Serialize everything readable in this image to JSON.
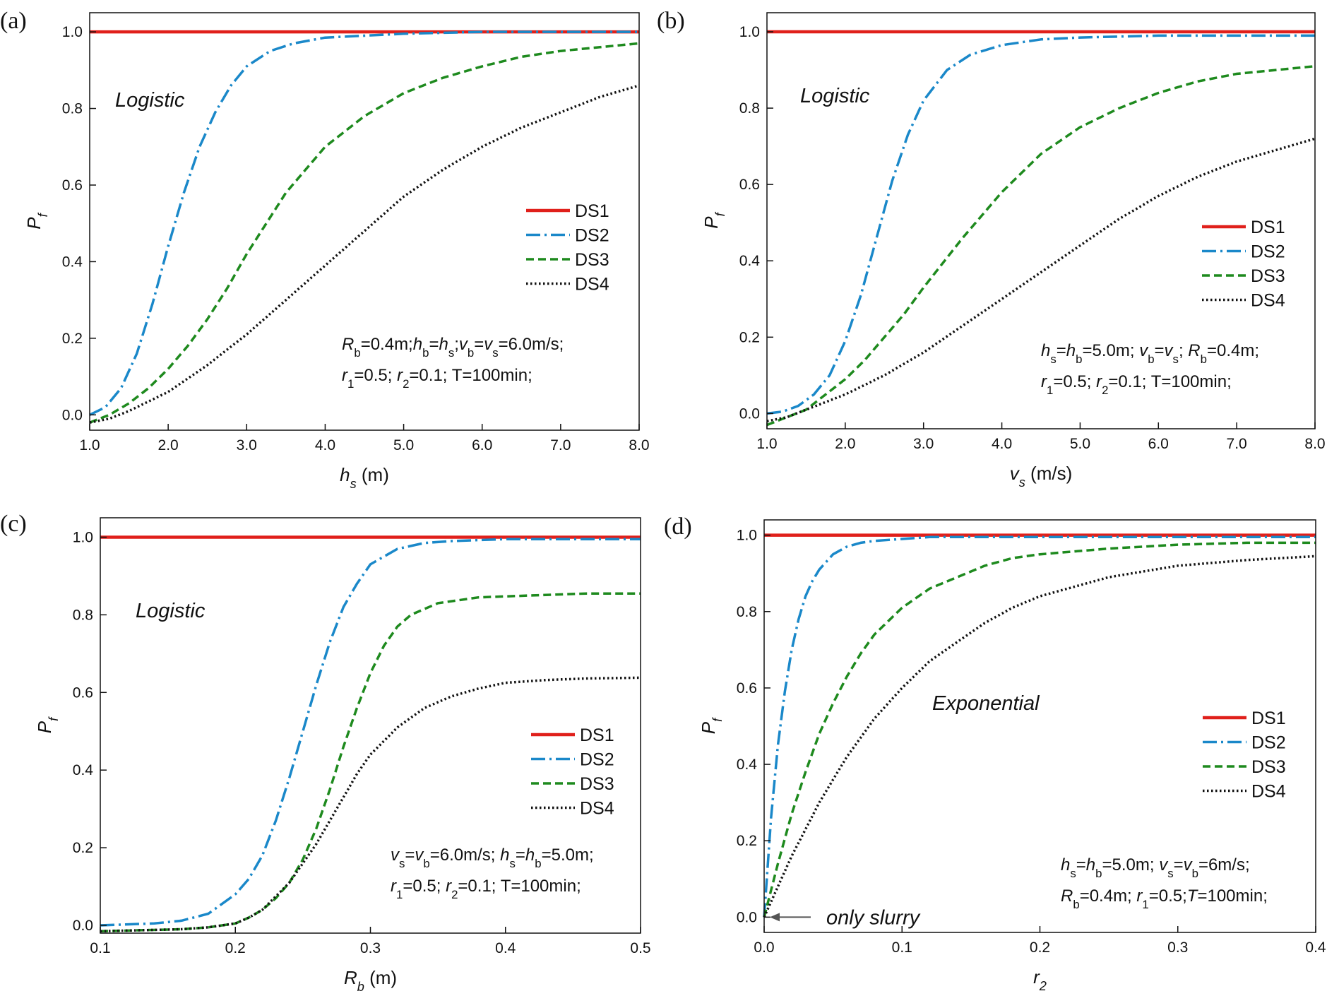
{
  "chart_data": [
    {
      "type": "line",
      "panel_label": "(a)",
      "annotation": "Logistic",
      "ylabel": {
        "main": "P",
        "sub": "f",
        "unit": ""
      },
      "xlabel": {
        "main": "h",
        "sub": "s",
        "unit": " (m)"
      },
      "xlim": [
        1.0,
        8.0
      ],
      "ylim": [
        -0.04,
        1.05
      ],
      "xticks": [
        "1.0",
        "2.0",
        "3.0",
        "4.0",
        "5.0",
        "6.0",
        "7.0",
        "8.0"
      ],
      "yticks": [
        "0.0",
        "0.2",
        "0.4",
        "0.6",
        "0.8",
        "1.0"
      ],
      "legend": [
        "DS1",
        "DS2",
        "DS3",
        "DS4"
      ],
      "params": [
        [
          {
            "t": "R",
            "i": true
          },
          {
            "t": "b",
            "sub": true
          },
          {
            "t": "=0.4m;"
          },
          {
            "t": "h",
            "i": true
          },
          {
            "t": "b",
            "sub": true
          },
          {
            "t": "="
          },
          {
            "t": "h",
            "i": true
          },
          {
            "t": "s",
            "sub": true
          },
          {
            "t": ";"
          },
          {
            "t": "v",
            "i": true
          },
          {
            "t": "b",
            "sub": true
          },
          {
            "t": "="
          },
          {
            "t": "v",
            "i": true
          },
          {
            "t": "s",
            "sub": true
          },
          {
            "t": "=6.0m/s;"
          }
        ],
        [
          {
            "t": "r",
            "i": true
          },
          {
            "t": "1",
            "sub": true
          },
          {
            "t": "=0.5; "
          },
          {
            "t": "r",
            "i": true
          },
          {
            "t": "2",
            "sub": true
          },
          {
            "t": "=0.1; T=100min;"
          }
        ]
      ],
      "series": [
        {
          "name": "DS1",
          "x": [
            1.0,
            8.0
          ],
          "y": [
            1.0,
            1.0
          ]
        },
        {
          "name": "DS2",
          "x": [
            1.0,
            1.2,
            1.4,
            1.6,
            1.8,
            2.0,
            2.2,
            2.4,
            2.6,
            2.8,
            3.0,
            3.3,
            3.6,
            4.0,
            4.5,
            5.0,
            6.0,
            7.0,
            8.0
          ],
          "y": [
            0.0,
            0.02,
            0.07,
            0.16,
            0.29,
            0.44,
            0.58,
            0.7,
            0.79,
            0.86,
            0.91,
            0.95,
            0.97,
            0.985,
            0.99,
            0.995,
            1.0,
            1.0,
            1.0
          ]
        },
        {
          "name": "DS3",
          "x": [
            1.0,
            1.25,
            1.5,
            1.75,
            2.0,
            2.25,
            2.5,
            2.75,
            3.0,
            3.25,
            3.5,
            3.75,
            4.0,
            4.5,
            5.0,
            5.5,
            6.0,
            6.5,
            7.0,
            7.5,
            8.0
          ],
          "y": [
            -0.02,
            0.0,
            0.03,
            0.07,
            0.12,
            0.18,
            0.25,
            0.33,
            0.42,
            0.5,
            0.58,
            0.64,
            0.7,
            0.78,
            0.84,
            0.88,
            0.91,
            0.935,
            0.95,
            0.96,
            0.97
          ]
        },
        {
          "name": "DS4",
          "x": [
            1.0,
            1.25,
            1.5,
            1.75,
            2.0,
            2.5,
            3.0,
            3.5,
            4.0,
            4.5,
            5.0,
            5.5,
            6.0,
            6.5,
            7.0,
            7.5,
            8.0
          ],
          "y": [
            -0.02,
            -0.01,
            0.01,
            0.035,
            0.06,
            0.13,
            0.21,
            0.3,
            0.39,
            0.48,
            0.57,
            0.64,
            0.7,
            0.75,
            0.79,
            0.83,
            0.86
          ]
        }
      ]
    },
    {
      "type": "line",
      "panel_label": "(b)",
      "annotation": "Logistic",
      "ylabel": {
        "main": "P",
        "sub": "f",
        "unit": ""
      },
      "xlabel": {
        "main": "v",
        "sub": "s",
        "unit": " (m/s)"
      },
      "xlim": [
        1.0,
        8.0
      ],
      "ylim": [
        -0.04,
        1.05
      ],
      "xticks": [
        "1.0",
        "2.0",
        "3.0",
        "4.0",
        "5.0",
        "6.0",
        "7.0",
        "8.0"
      ],
      "yticks": [
        "0.0",
        "0.2",
        "0.4",
        "0.6",
        "0.8",
        "1.0"
      ],
      "legend": [
        "DS1",
        "DS2",
        "DS3",
        "DS4"
      ],
      "params": [
        [
          {
            "t": "h",
            "i": true
          },
          {
            "t": "s",
            "sub": true
          },
          {
            "t": "="
          },
          {
            "t": "h",
            "i": true
          },
          {
            "t": "b",
            "sub": true
          },
          {
            "t": "=5.0m; "
          },
          {
            "t": "v",
            "i": true
          },
          {
            "t": "b",
            "sub": true
          },
          {
            "t": "="
          },
          {
            "t": "v",
            "i": true
          },
          {
            "t": "s",
            "sub": true
          },
          {
            "t": "; "
          },
          {
            "t": "R",
            "i": true
          },
          {
            "t": "b",
            "sub": true
          },
          {
            "t": "=0.4m;"
          }
        ],
        [
          {
            "t": "r",
            "i": true
          },
          {
            "t": "1",
            "sub": true
          },
          {
            "t": "=0.5; "
          },
          {
            "t": "r",
            "i": true
          },
          {
            "t": "2",
            "sub": true
          },
          {
            "t": "=0.1; T=100min;"
          }
        ]
      ],
      "series": [
        {
          "name": "DS1",
          "x": [
            1.0,
            8.0
          ],
          "y": [
            1.0,
            1.0
          ]
        },
        {
          "name": "DS2",
          "x": [
            1.0,
            1.2,
            1.4,
            1.6,
            1.8,
            2.0,
            2.2,
            2.4,
            2.6,
            2.8,
            3.0,
            3.3,
            3.6,
            4.0,
            4.5,
            5.0,
            6.0,
            7.0,
            8.0
          ],
          "y": [
            0.0,
            0.005,
            0.02,
            0.05,
            0.1,
            0.19,
            0.31,
            0.46,
            0.61,
            0.73,
            0.82,
            0.9,
            0.94,
            0.965,
            0.98,
            0.985,
            0.99,
            0.99,
            0.99
          ]
        },
        {
          "name": "DS3",
          "x": [
            1.0,
            1.25,
            1.5,
            1.75,
            2.0,
            2.25,
            2.5,
            2.75,
            3.0,
            3.5,
            4.0,
            4.5,
            5.0,
            5.5,
            6.0,
            6.5,
            7.0,
            7.5,
            8.0
          ],
          "y": [
            -0.03,
            -0.01,
            0.01,
            0.05,
            0.09,
            0.14,
            0.2,
            0.26,
            0.33,
            0.46,
            0.58,
            0.68,
            0.75,
            0.8,
            0.84,
            0.87,
            0.89,
            0.9,
            0.91
          ]
        },
        {
          "name": "DS4",
          "x": [
            1.0,
            1.25,
            1.5,
            1.75,
            2.0,
            2.5,
            3.0,
            3.5,
            4.0,
            4.5,
            5.0,
            5.5,
            6.0,
            6.5,
            7.0,
            7.5,
            8.0
          ],
          "y": [
            -0.02,
            -0.01,
            0.01,
            0.03,
            0.05,
            0.1,
            0.16,
            0.23,
            0.3,
            0.37,
            0.44,
            0.51,
            0.57,
            0.62,
            0.66,
            0.69,
            0.72
          ]
        }
      ]
    },
    {
      "type": "line",
      "panel_label": "(c)",
      "annotation": "Logistic",
      "ylabel": {
        "main": "P",
        "sub": "f",
        "unit": ""
      },
      "xlabel": {
        "main": "R",
        "sub": "b",
        "unit": " (m)"
      },
      "xlim": [
        0.1,
        0.5
      ],
      "ylim": [
        -0.02,
        1.05
      ],
      "xticks": [
        "0.1",
        "0.2",
        "0.3",
        "0.4",
        "0.5"
      ],
      "yticks": [
        "0.0",
        "0.2",
        "0.4",
        "0.6",
        "0.8",
        "1.0"
      ],
      "legend": [
        "DS1",
        "DS2",
        "DS3",
        "DS4"
      ],
      "params": [
        [
          {
            "t": "v",
            "i": true
          },
          {
            "t": "s",
            "sub": true
          },
          {
            "t": "="
          },
          {
            "t": "v",
            "i": true
          },
          {
            "t": "b",
            "sub": true
          },
          {
            "t": "=6.0m/s; "
          },
          {
            "t": "h",
            "i": true
          },
          {
            "t": "s",
            "sub": true
          },
          {
            "t": "="
          },
          {
            "t": "h",
            "i": true
          },
          {
            "t": "b",
            "sub": true
          },
          {
            "t": "=5.0m;"
          }
        ],
        [
          {
            "t": "r",
            "i": true
          },
          {
            "t": "1",
            "sub": true
          },
          {
            "t": "=0.5; "
          },
          {
            "t": "r",
            "i": true
          },
          {
            "t": "2",
            "sub": true
          },
          {
            "t": "=0.1; T=100min;"
          }
        ]
      ],
      "series": [
        {
          "name": "DS1",
          "x": [
            0.1,
            0.5
          ],
          "y": [
            1.0,
            1.0
          ]
        },
        {
          "name": "DS2",
          "x": [
            0.1,
            0.14,
            0.16,
            0.18,
            0.2,
            0.21,
            0.22,
            0.23,
            0.24,
            0.25,
            0.26,
            0.27,
            0.28,
            0.29,
            0.3,
            0.32,
            0.34,
            0.36,
            0.4,
            0.45,
            0.5
          ],
          "y": [
            0.0,
            0.005,
            0.012,
            0.03,
            0.08,
            0.12,
            0.18,
            0.27,
            0.38,
            0.5,
            0.62,
            0.73,
            0.82,
            0.88,
            0.93,
            0.97,
            0.985,
            0.99,
            0.995,
            0.995,
            0.995
          ]
        },
        {
          "name": "DS3",
          "x": [
            0.1,
            0.16,
            0.18,
            0.2,
            0.21,
            0.22,
            0.23,
            0.24,
            0.25,
            0.26,
            0.27,
            0.28,
            0.29,
            0.3,
            0.31,
            0.32,
            0.33,
            0.35,
            0.38,
            0.42,
            0.46,
            0.5
          ],
          "y": [
            -0.015,
            -0.01,
            -0.005,
            0.005,
            0.02,
            0.04,
            0.07,
            0.11,
            0.17,
            0.25,
            0.35,
            0.46,
            0.56,
            0.65,
            0.72,
            0.77,
            0.8,
            0.83,
            0.845,
            0.85,
            0.855,
            0.855
          ]
        },
        {
          "name": "DS4",
          "x": [
            0.1,
            0.16,
            0.18,
            0.2,
            0.21,
            0.22,
            0.23,
            0.24,
            0.25,
            0.26,
            0.27,
            0.28,
            0.29,
            0.3,
            0.32,
            0.34,
            0.36,
            0.38,
            0.4,
            0.43,
            0.46,
            0.5
          ],
          "y": [
            -0.015,
            -0.01,
            -0.005,
            0.005,
            0.02,
            0.04,
            0.075,
            0.11,
            0.16,
            0.21,
            0.27,
            0.33,
            0.39,
            0.44,
            0.51,
            0.56,
            0.59,
            0.61,
            0.625,
            0.632,
            0.636,
            0.638
          ]
        }
      ]
    },
    {
      "type": "line",
      "panel_label": "(d)",
      "annotation": "Exponential",
      "annotation2": "only slurry",
      "ylabel": {
        "main": "P",
        "sub": "f",
        "unit": ""
      },
      "xlabel": {
        "main": "r",
        "sub": "2",
        "unit": ""
      },
      "xlim": [
        0.0,
        0.4
      ],
      "ylim": [
        -0.04,
        1.04
      ],
      "xticks": [
        "0.0",
        "0.1",
        "0.2",
        "0.3",
        "0.4"
      ],
      "yticks": [
        "0.0",
        "0.2",
        "0.4",
        "0.6",
        "0.8",
        "1.0"
      ],
      "legend": [
        "DS1",
        "DS2",
        "DS3",
        "DS4"
      ],
      "params": [
        [
          {
            "t": "h",
            "i": true
          },
          {
            "t": "s",
            "sub": true
          },
          {
            "t": "="
          },
          {
            "t": "h",
            "i": true
          },
          {
            "t": "b",
            "sub": true
          },
          {
            "t": "=5.0m; "
          },
          {
            "t": "v",
            "i": true
          },
          {
            "t": "s",
            "sub": true
          },
          {
            "t": "="
          },
          {
            "t": "v",
            "i": true
          },
          {
            "t": "b",
            "sub": true
          },
          {
            "t": "=6m/s;"
          }
        ],
        [
          {
            "t": "R",
            "i": true
          },
          {
            "t": "b",
            "sub": true
          },
          {
            "t": "=0.4m; "
          },
          {
            "t": "r",
            "i": true
          },
          {
            "t": "1",
            "sub": true
          },
          {
            "t": "=0.5;"
          },
          {
            "t": "T",
            "i": true
          },
          {
            "t": "=100min;"
          }
        ]
      ],
      "series": [
        {
          "name": "DS1",
          "x": [
            0.0,
            0.4
          ],
          "y": [
            1.0,
            1.0
          ]
        },
        {
          "name": "DS2",
          "x": [
            0.0,
            0.005,
            0.01,
            0.015,
            0.02,
            0.025,
            0.03,
            0.035,
            0.04,
            0.05,
            0.06,
            0.07,
            0.08,
            0.1,
            0.12,
            0.15,
            0.2,
            0.3,
            0.4
          ],
          "y": [
            0.0,
            0.26,
            0.45,
            0.59,
            0.7,
            0.78,
            0.84,
            0.88,
            0.91,
            0.95,
            0.97,
            0.98,
            0.985,
            0.99,
            0.995,
            0.995,
            0.995,
            0.995,
            0.995
          ]
        },
        {
          "name": "DS3",
          "x": [
            0.0,
            0.01,
            0.02,
            0.03,
            0.04,
            0.05,
            0.06,
            0.07,
            0.08,
            0.1,
            0.12,
            0.14,
            0.16,
            0.18,
            0.2,
            0.25,
            0.3,
            0.35,
            0.4
          ],
          "y": [
            0.0,
            0.14,
            0.27,
            0.38,
            0.48,
            0.56,
            0.63,
            0.69,
            0.74,
            0.81,
            0.86,
            0.89,
            0.92,
            0.94,
            0.95,
            0.965,
            0.975,
            0.98,
            0.98
          ]
        },
        {
          "name": "DS4",
          "x": [
            0.0,
            0.01,
            0.02,
            0.03,
            0.04,
            0.05,
            0.06,
            0.08,
            0.1,
            0.12,
            0.14,
            0.16,
            0.18,
            0.2,
            0.25,
            0.3,
            0.35,
            0.4
          ],
          "y": [
            0.0,
            0.08,
            0.16,
            0.23,
            0.3,
            0.36,
            0.42,
            0.52,
            0.6,
            0.67,
            0.72,
            0.77,
            0.81,
            0.84,
            0.89,
            0.92,
            0.935,
            0.945
          ]
        }
      ]
    }
  ],
  "colors": {
    "DS1": "#e0201b",
    "DS2": "#1a88c9",
    "DS3": "#1e8a1e",
    "DS4": "#111111",
    "axis": "#111111",
    "arrow": "#555555"
  }
}
